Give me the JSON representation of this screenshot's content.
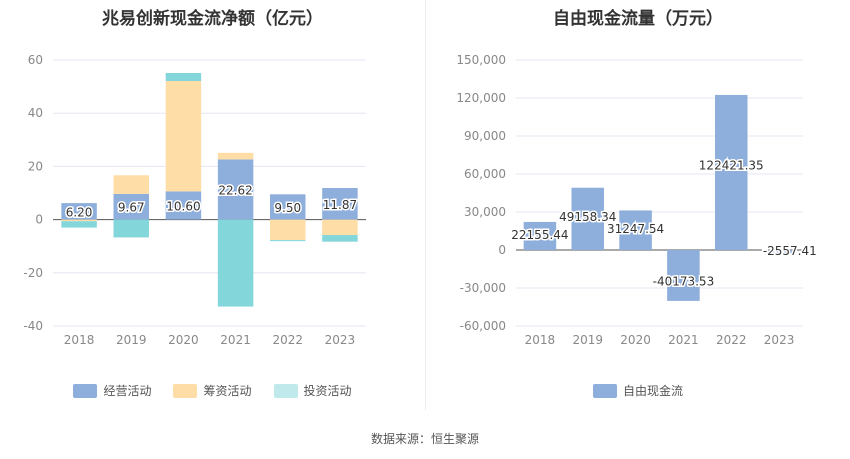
{
  "footer": {
    "source": "数据来源：恒生聚源"
  },
  "chart_data": [
    {
      "type": "bar",
      "stacked": true,
      "title": "兆易创新现金流净额（亿元）",
      "categories": [
        "2018",
        "2019",
        "2020",
        "2021",
        "2022",
        "2023"
      ],
      "ylim": [
        -40,
        60
      ],
      "yticks": [
        -40,
        -20,
        0,
        20,
        40,
        60
      ],
      "grid": true,
      "legend_position": "bottom",
      "series": [
        {
          "name": "经营活动",
          "color": "#8EAEDB",
          "values": [
            6.2,
            9.67,
            10.6,
            22.62,
            9.5,
            11.87
          ]
        },
        {
          "name": "筹资活动",
          "color": "#FFDDA6",
          "values": [
            -0.6,
            7.0,
            41.5,
            2.5,
            -7.7,
            -5.8
          ]
        },
        {
          "name": "投资活动",
          "color": "#83D6D9",
          "values": [
            -2.4,
            -6.7,
            3.0,
            -32.7,
            -0.4,
            -2.5
          ]
        }
      ],
      "data_labels": [
        "6.20",
        "9.67",
        "10.60",
        "22.62",
        "9.50",
        "11.87"
      ]
    },
    {
      "type": "bar",
      "title": "自由现金流量（万元）",
      "categories": [
        "2018",
        "2019",
        "2020",
        "2021",
        "2022",
        "2023"
      ],
      "ylim": [
        -60000,
        150000
      ],
      "yticks": [
        -60000,
        -30000,
        0,
        30000,
        60000,
        90000,
        120000,
        150000
      ],
      "ytick_labels": [
        "-60,000",
        "-30,000",
        "0",
        "30,000",
        "60,000",
        "90,000",
        "120,000",
        "150,000"
      ],
      "grid": true,
      "legend_position": "bottom",
      "series": [
        {
          "name": "自由现金流",
          "color": "#8EAEDB",
          "values": [
            22155.44,
            49158.34,
            31247.54,
            -40173.53,
            122421.35,
            -2557.41
          ]
        }
      ],
      "data_labels": [
        "22155.44",
        "49158.34",
        "31247.54",
        "-40173.53",
        "122421.35",
        "-2557.41"
      ]
    }
  ]
}
